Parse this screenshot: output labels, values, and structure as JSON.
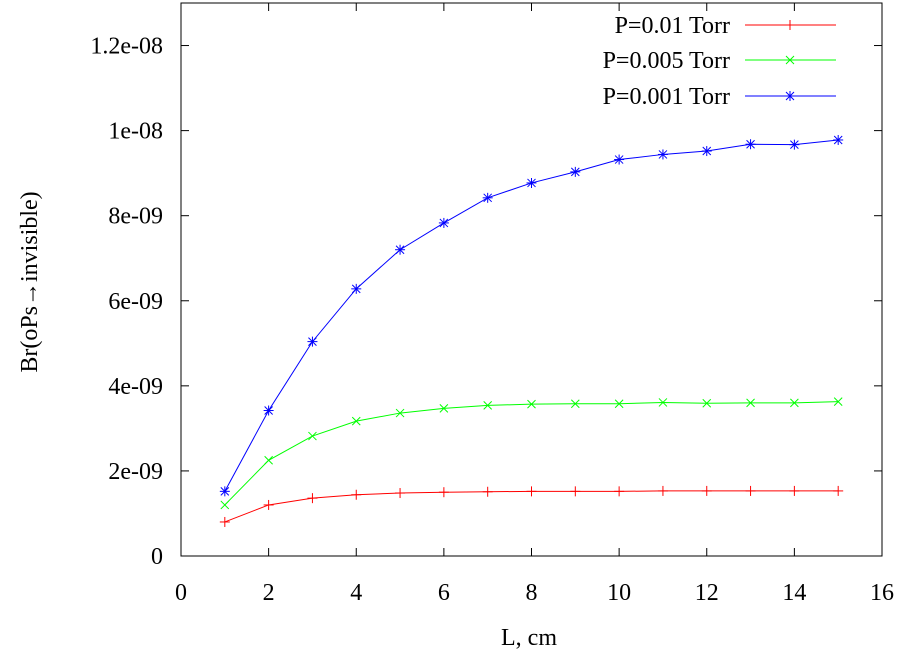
{
  "chart_data": {
    "type": "line",
    "title": "",
    "xlabel": "L, cm",
    "ylabel": "Br(oPs→invisible)",
    "xlim": [
      0,
      16
    ],
    "ylim": [
      0,
      1.3e-08
    ],
    "x_ticks": [
      {
        "value": 0,
        "label": "0"
      },
      {
        "value": 2,
        "label": "2"
      },
      {
        "value": 4,
        "label": "4"
      },
      {
        "value": 6,
        "label": "6"
      },
      {
        "value": 8,
        "label": "8"
      },
      {
        "value": 10,
        "label": "10"
      },
      {
        "value": 12,
        "label": "12"
      },
      {
        "value": 14,
        "label": "14"
      },
      {
        "value": 16,
        "label": "16"
      }
    ],
    "y_ticks": [
      {
        "value": 0,
        "label": "0"
      },
      {
        "value": 2e-09,
        "label": "2e-09"
      },
      {
        "value": 4e-09,
        "label": "4e-09"
      },
      {
        "value": 6e-09,
        "label": "6e-09"
      },
      {
        "value": 8e-09,
        "label": "8e-09"
      },
      {
        "value": 1e-08,
        "label": "1e-08"
      },
      {
        "value": 1.2e-08,
        "label": "1.2e-08"
      }
    ],
    "grid": false,
    "legend_position": "top-right",
    "x": [
      1,
      2,
      3,
      4,
      5,
      6,
      7,
      8,
      9,
      10,
      11,
      12,
      13,
      14,
      15
    ],
    "series": [
      {
        "name": "P=0.01 Torr",
        "color": "#ff0000",
        "marker": "plus",
        "values": [
          8e-10,
          1.2e-09,
          1.36e-09,
          1.44e-09,
          1.48e-09,
          1.5e-09,
          1.51e-09,
          1.52e-09,
          1.52e-09,
          1.52e-09,
          1.53e-09,
          1.53e-09,
          1.53e-09,
          1.53e-09,
          1.53e-09
        ]
      },
      {
        "name": "P=0.005 Torr",
        "color": "#00ff00",
        "marker": "cross",
        "values": [
          1.2e-09,
          2.25e-09,
          2.82e-09,
          3.17e-09,
          3.36e-09,
          3.47e-09,
          3.54e-09,
          3.57e-09,
          3.58e-09,
          3.58e-09,
          3.61e-09,
          3.59e-09,
          3.6e-09,
          3.6e-09,
          3.63e-09
        ]
      },
      {
        "name": "P=0.001 Torr",
        "color": "#0000ff",
        "marker": "star",
        "values": [
          1.52e-09,
          3.42e-09,
          5.04e-09,
          6.28e-09,
          7.2e-09,
          7.83e-09,
          8.42e-09,
          8.77e-09,
          9.03e-09,
          9.32e-09,
          9.44e-09,
          9.52e-09,
          9.68e-09,
          9.67e-09,
          9.78e-09
        ]
      }
    ]
  }
}
